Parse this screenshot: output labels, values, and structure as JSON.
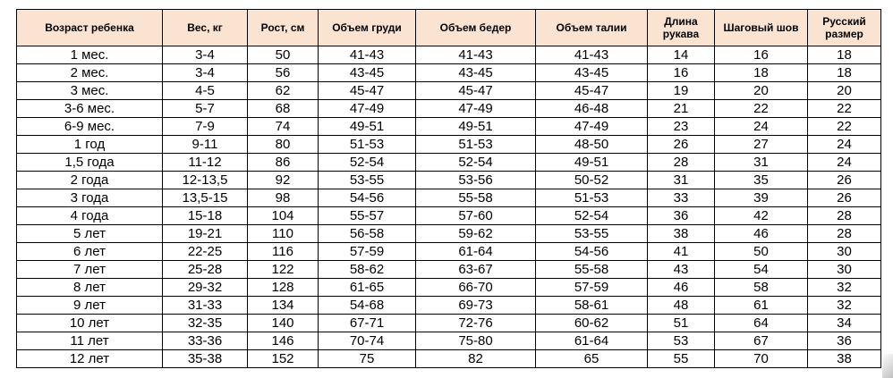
{
  "table": {
    "headers": [
      "Возраст ребенка",
      "Вес, кг",
      "Рост, см",
      "Объем груди",
      "Объем бедер",
      "Объем талии",
      "Длина рукава",
      "Шаговый шов",
      "Русский размер"
    ],
    "rows": [
      [
        "1 мес.",
        "3-4",
        "50",
        "41-43",
        "41-43",
        "41-43",
        "14",
        "16",
        "18"
      ],
      [
        "2 мес.",
        "3-4",
        "56",
        "43-45",
        "43-45",
        "43-45",
        "16",
        "18",
        "18"
      ],
      [
        "3 мес.",
        "4-5",
        "62",
        "45-47",
        "45-47",
        "45-47",
        "19",
        "20",
        "20"
      ],
      [
        "3-6 мес.",
        "5-7",
        "68",
        "47-49",
        "47-49",
        "46-48",
        "21",
        "22",
        "22"
      ],
      [
        "6-9 мес.",
        "7-9",
        "74",
        "49-51",
        "49-51",
        "47-49",
        "23",
        "24",
        "22"
      ],
      [
        "1 год",
        "9-11",
        "80",
        "51-53",
        "51-53",
        "48-50",
        "26",
        "27",
        "24"
      ],
      [
        "1,5 года",
        "11-12",
        "86",
        "52-54",
        "52-54",
        "49-51",
        "28",
        "31",
        "24"
      ],
      [
        "2 года",
        "12-13,5",
        "92",
        "53-55",
        "53-56",
        "50-52",
        "31",
        "35",
        "26"
      ],
      [
        "3 года",
        "13,5-15",
        "98",
        "54-56",
        "55-58",
        "51-53",
        "33",
        "39",
        "26"
      ],
      [
        "4 года",
        "15-18",
        "104",
        "55-57",
        "57-60",
        "52-54",
        "36",
        "42",
        "28"
      ],
      [
        "5 лет",
        "19-21",
        "110",
        "56-58",
        "59-62",
        "53-55",
        "38",
        "46",
        "28"
      ],
      [
        "6 лет",
        "22-25",
        "116",
        "57-59",
        "61-64",
        "54-56",
        "41",
        "50",
        "30"
      ],
      [
        "7 лет",
        "25-28",
        "122",
        "58-62",
        "63-67",
        "55-58",
        "43",
        "54",
        "30"
      ],
      [
        "8 лет",
        "29-32",
        "128",
        "61-65",
        "66-70",
        "57-59",
        "46",
        "58",
        "32"
      ],
      [
        "9 лет",
        "31-33",
        "134",
        "54-68",
        "69-73",
        "58-61",
        "48",
        "61",
        "32"
      ],
      [
        "10 лет",
        "32-35",
        "140",
        "67-71",
        "72-76",
        "60-62",
        "51",
        "64",
        "34"
      ],
      [
        "11 лет",
        "33-36",
        "146",
        "70-74",
        "75-80",
        "61-64",
        "53",
        "67",
        "36"
      ],
      [
        "12 лет",
        "35-38",
        "152",
        "75",
        "82",
        "65",
        "55",
        "70",
        "38"
      ]
    ]
  },
  "colors": {
    "header_background": "#fbe3d1",
    "border": "#000000",
    "text": "#000000"
  }
}
